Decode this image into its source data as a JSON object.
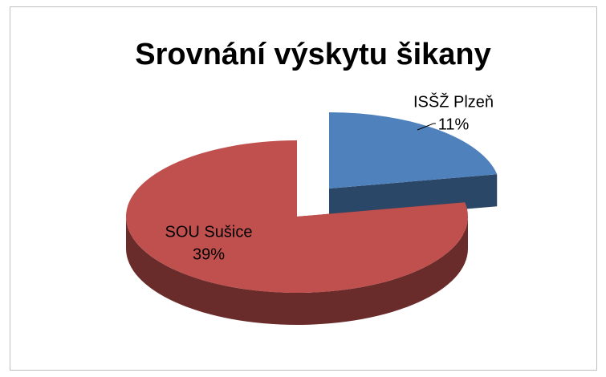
{
  "chart_data": {
    "type": "pie",
    "title": "Srovnání výskytu šikany",
    "categories": [
      "ISŠŽ Plzeň",
      "SOU Sušice"
    ],
    "values": [
      11,
      39
    ],
    "value_labels": [
      "11%",
      "39%"
    ],
    "colors": [
      "#4f81bd",
      "#c0504d"
    ]
  }
}
